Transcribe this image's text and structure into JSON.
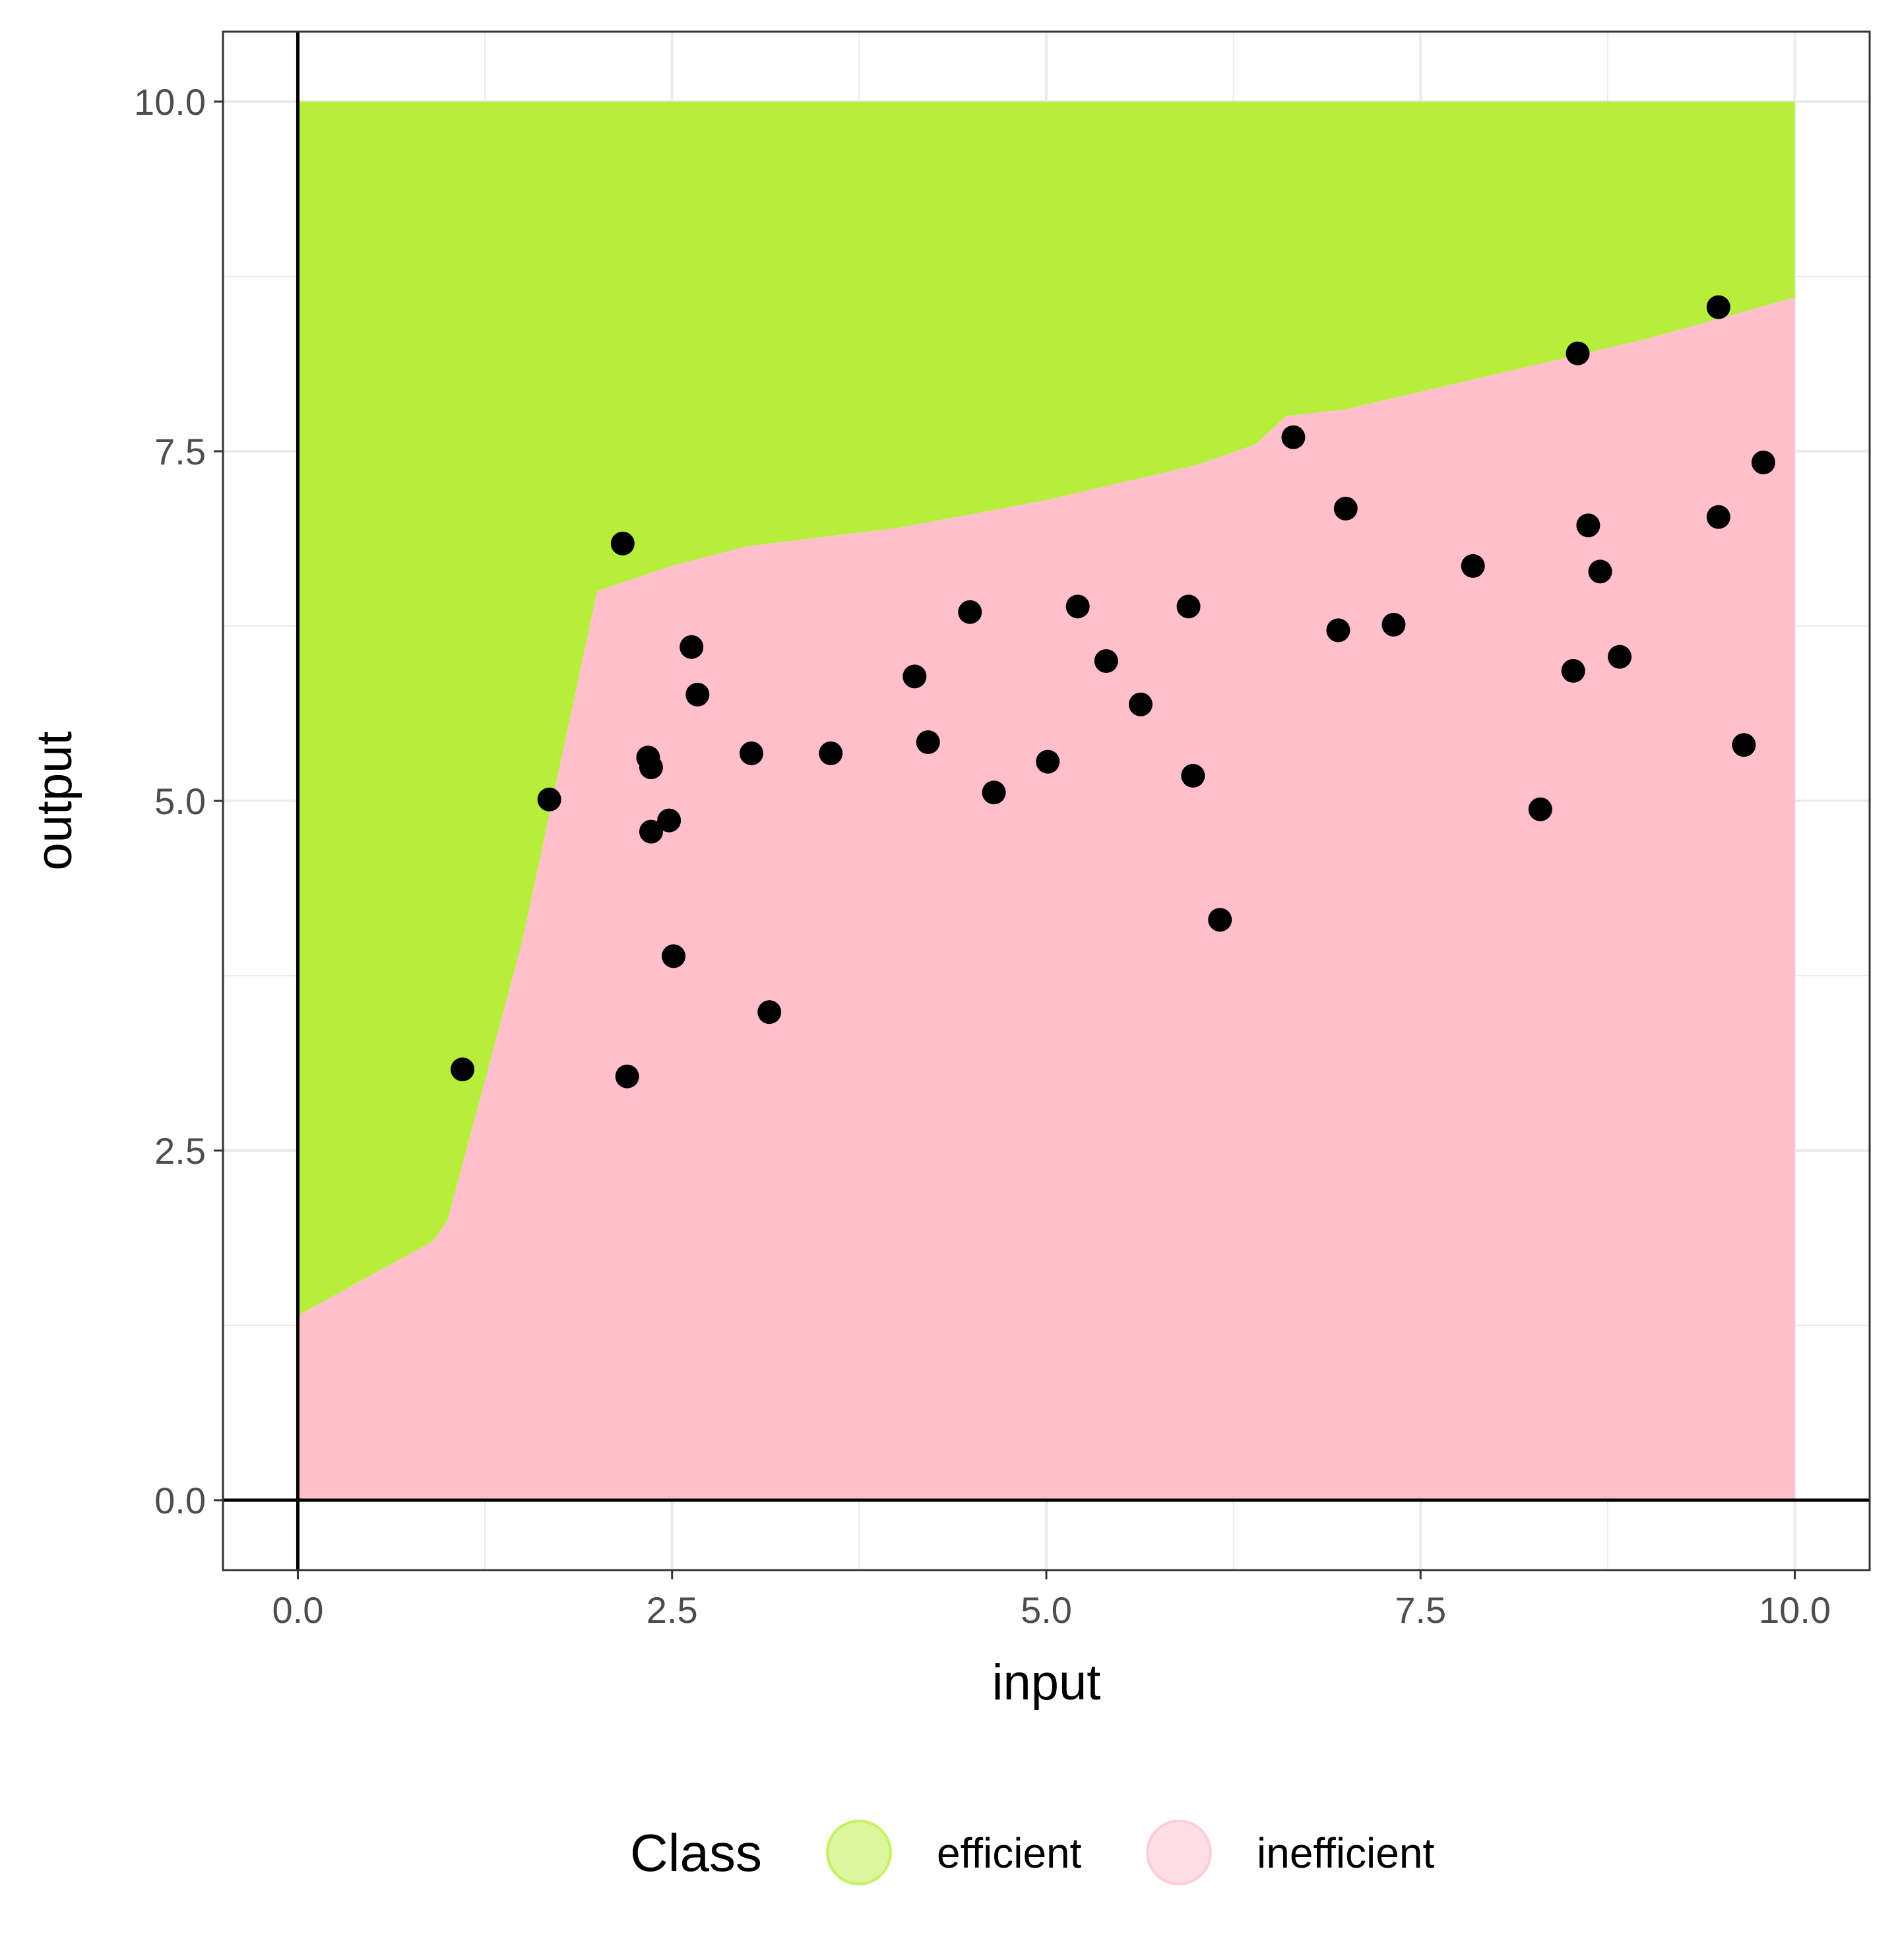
{
  "chart_data": {
    "type": "scatter",
    "title": "",
    "xlabel": "input",
    "ylabel": "output",
    "xlim": [
      -0.5,
      10.5
    ],
    "ylim": [
      -0.5,
      10.5
    ],
    "grid": true,
    "x_ticks": [
      0.0,
      2.5,
      5.0,
      7.5,
      10.0
    ],
    "y_ticks": [
      0.0,
      2.5,
      5.0,
      7.5,
      10.0
    ],
    "x_tick_labels": [
      "0.0",
      "2.5",
      "5.0",
      "7.5",
      "10.0"
    ],
    "y_tick_labels": [
      "0.0",
      "2.5",
      "5.0",
      "7.5",
      "10.0"
    ],
    "colors": {
      "efficient": "#b7ee3b",
      "inefficient": "#ffc0cb",
      "points": "#000000",
      "grid": "#ebebeb",
      "reference_lines": "#000000"
    },
    "regions": {
      "domain_x": [
        0,
        10
      ],
      "domain_y": [
        0,
        10
      ],
      "frontier": [
        [
          0.0,
          1.32
        ],
        [
          0.9,
          1.85
        ],
        [
          1.0,
          2.0
        ],
        [
          1.5,
          4.0
        ],
        [
          2.0,
          6.5
        ],
        [
          2.5,
          6.68
        ],
        [
          3.0,
          6.82
        ],
        [
          4.0,
          6.95
        ],
        [
          5.0,
          7.15
        ],
        [
          6.0,
          7.4
        ],
        [
          6.4,
          7.55
        ],
        [
          6.6,
          7.75
        ],
        [
          7.0,
          7.8
        ],
        [
          8.0,
          8.05
        ],
        [
          9.0,
          8.3
        ],
        [
          10.0,
          8.6
        ]
      ]
    },
    "legend": {
      "title": "Class",
      "position": "bottom",
      "entries": [
        "efficient",
        "inefficient"
      ]
    },
    "points": [
      {
        "x": 1.1,
        "y": 3.08
      },
      {
        "x": 1.68,
        "y": 5.01
      },
      {
        "x": 2.17,
        "y": 6.84
      },
      {
        "x": 2.2,
        "y": 3.03
      },
      {
        "x": 2.34,
        "y": 5.31
      },
      {
        "x": 2.36,
        "y": 5.24
      },
      {
        "x": 2.36,
        "y": 4.78
      },
      {
        "x": 2.48,
        "y": 4.86
      },
      {
        "x": 2.51,
        "y": 3.89
      },
      {
        "x": 2.63,
        "y": 6.1
      },
      {
        "x": 2.67,
        "y": 5.76
      },
      {
        "x": 3.03,
        "y": 5.34
      },
      {
        "x": 3.15,
        "y": 3.49
      },
      {
        "x": 3.56,
        "y": 5.34
      },
      {
        "x": 4.12,
        "y": 5.89
      },
      {
        "x": 4.21,
        "y": 5.42
      },
      {
        "x": 4.49,
        "y": 6.35
      },
      {
        "x": 4.65,
        "y": 5.06
      },
      {
        "x": 5.01,
        "y": 5.28
      },
      {
        "x": 5.21,
        "y": 6.39
      },
      {
        "x": 5.4,
        "y": 6.0
      },
      {
        "x": 5.63,
        "y": 5.69
      },
      {
        "x": 5.95,
        "y": 6.39
      },
      {
        "x": 5.98,
        "y": 5.18
      },
      {
        "x": 6.16,
        "y": 4.15
      },
      {
        "x": 6.65,
        "y": 7.6
      },
      {
        "x": 6.95,
        "y": 6.22
      },
      {
        "x": 7.0,
        "y": 7.09
      },
      {
        "x": 7.32,
        "y": 6.26
      },
      {
        "x": 7.85,
        "y": 6.68
      },
      {
        "x": 8.3,
        "y": 4.94
      },
      {
        "x": 8.52,
        "y": 5.93
      },
      {
        "x": 8.55,
        "y": 8.2
      },
      {
        "x": 8.62,
        "y": 6.97
      },
      {
        "x": 8.7,
        "y": 6.64
      },
      {
        "x": 8.83,
        "y": 6.03
      },
      {
        "x": 9.49,
        "y": 8.53
      },
      {
        "x": 9.49,
        "y": 7.03
      },
      {
        "x": 9.66,
        "y": 5.4
      },
      {
        "x": 9.79,
        "y": 7.42
      }
    ]
  }
}
